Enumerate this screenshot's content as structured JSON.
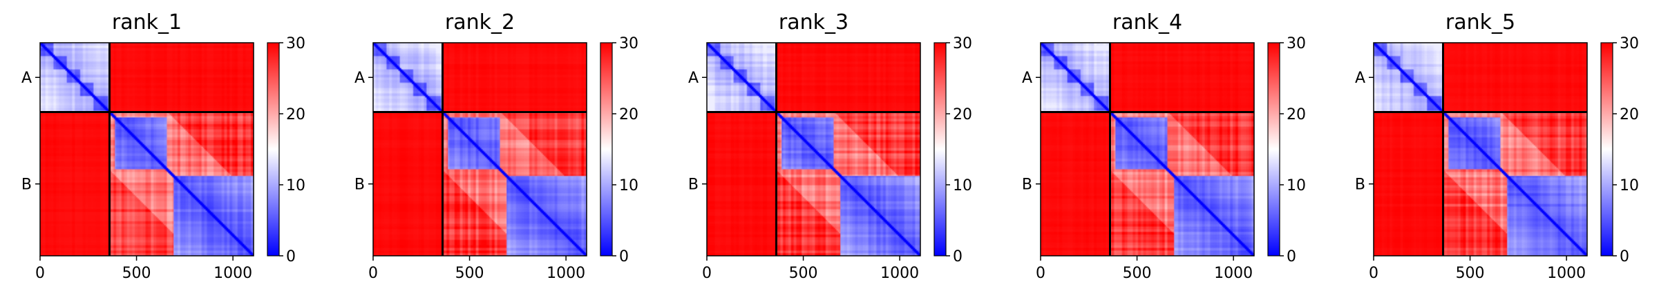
{
  "chart_data": [
    {
      "type": "heatmap",
      "title": "rank_1",
      "xticks": [
        "0",
        "500",
        "1000"
      ],
      "yticks": [
        "A",
        "B"
      ],
      "xlim": [
        0,
        1107
      ],
      "chain_break": 360,
      "colorbar": {
        "ticks": [
          "0",
          "10",
          "20",
          "30"
        ],
        "range": [
          0,
          30
        ],
        "cmap": [
          "#0000ff",
          "#ffffff",
          "#ff0000"
        ]
      },
      "blue_blocks": [
        [
          0,
          360
        ],
        [
          390,
          660
        ],
        [
          690,
          1107
        ]
      ],
      "tail_start": 690
    },
    {
      "type": "heatmap",
      "title": "rank_2",
      "xticks": [
        "0",
        "500",
        "1000"
      ],
      "yticks": [
        "A",
        "B"
      ],
      "xlim": [
        0,
        1107
      ],
      "chain_break": 360,
      "colorbar": {
        "ticks": [
          "0",
          "10",
          "20",
          "30"
        ],
        "range": [
          0,
          30
        ],
        "cmap": [
          "#0000ff",
          "#ffffff",
          "#ff0000"
        ]
      },
      "blue_blocks": [
        [
          0,
          360
        ],
        [
          390,
          660
        ],
        [
          690,
          1107
        ]
      ],
      "tail_start": 690
    },
    {
      "type": "heatmap",
      "title": "rank_3",
      "xticks": [
        "0",
        "500",
        "1000"
      ],
      "yticks": [
        "A",
        "B"
      ],
      "xlim": [
        0,
        1107
      ],
      "chain_break": 360,
      "colorbar": {
        "ticks": [
          "0",
          "10",
          "20",
          "30"
        ],
        "range": [
          0,
          30
        ],
        "cmap": [
          "#0000ff",
          "#ffffff",
          "#ff0000"
        ]
      },
      "blue_blocks": [
        [
          0,
          360
        ],
        [
          390,
          660
        ],
        [
          690,
          1107
        ]
      ],
      "tail_start": 690
    },
    {
      "type": "heatmap",
      "title": "rank_4",
      "xticks": [
        "0",
        "500",
        "1000"
      ],
      "yticks": [
        "A",
        "B"
      ],
      "xlim": [
        0,
        1107
      ],
      "chain_break": 360,
      "colorbar": {
        "ticks": [
          "0",
          "10",
          "20",
          "30"
        ],
        "range": [
          0,
          30
        ],
        "cmap": [
          "#0000ff",
          "#ffffff",
          "#ff0000"
        ]
      },
      "blue_blocks": [
        [
          0,
          360
        ],
        [
          390,
          660
        ],
        [
          690,
          1107
        ]
      ],
      "tail_start": 690
    },
    {
      "type": "heatmap",
      "title": "rank_5",
      "xticks": [
        "0",
        "500",
        "1000"
      ],
      "yticks": [
        "A",
        "B"
      ],
      "xlim": [
        0,
        1107
      ],
      "chain_break": 360,
      "colorbar": {
        "ticks": [
          "0",
          "10",
          "20",
          "30"
        ],
        "range": [
          0,
          30
        ],
        "cmap": [
          "#0000ff",
          "#ffffff",
          "#ff0000"
        ]
      },
      "blue_blocks": [
        [
          0,
          360
        ],
        [
          390,
          660
        ],
        [
          690,
          1107
        ]
      ],
      "tail_start": 690
    }
  ]
}
